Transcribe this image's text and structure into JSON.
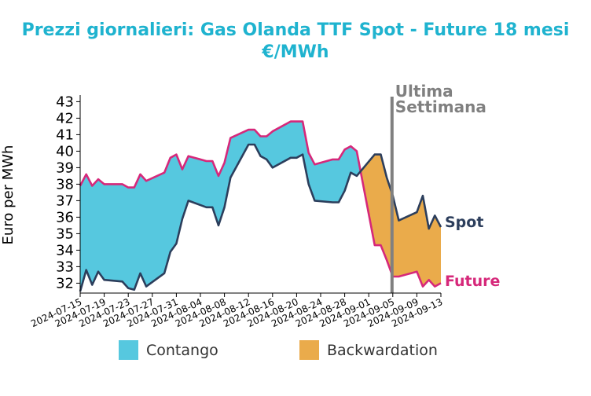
{
  "chart_data": {
    "type": "area",
    "title_line1": "Prezzi giornalieri: Gas Olanda TTF Spot - Future 18 mesi",
    "title_line2": "€/MWh",
    "ylabel": "Euro per MWh",
    "xlabel": "",
    "ylim": [
      31.4,
      43.4
    ],
    "yticks": [
      32,
      33,
      34,
      35,
      36,
      37,
      38,
      39,
      40,
      41,
      42,
      43
    ],
    "xticks": [
      "2024-07-15",
      "2024-07-19",
      "2024-07-23",
      "2024-07-27",
      "2024-07-31",
      "2024-08-04",
      "2024-08-08",
      "2024-08-12",
      "2024-08-16",
      "2024-08-20",
      "2024-08-24",
      "2024-08-28",
      "2024-09-01",
      "2024-09-05",
      "2024-09-09",
      "2024-09-13"
    ],
    "x_start": "2024-07-15",
    "x_end": "2024-09-13",
    "vline": {
      "date": "2024-09-05",
      "label_line1": "Ultima",
      "label_line2": "Settimana",
      "color": "#808080"
    },
    "series": [
      {
        "name": "Spot",
        "color": "#2c3e5c",
        "dates": [
          "2024-07-15",
          "2024-07-16",
          "2024-07-17",
          "2024-07-18",
          "2024-07-19",
          "2024-07-22",
          "2024-07-23",
          "2024-07-24",
          "2024-07-25",
          "2024-07-26",
          "2024-07-29",
          "2024-07-30",
          "2024-07-31",
          "2024-08-01",
          "2024-08-02",
          "2024-08-05",
          "2024-08-06",
          "2024-08-07",
          "2024-08-08",
          "2024-08-09",
          "2024-08-12",
          "2024-08-13",
          "2024-08-14",
          "2024-08-15",
          "2024-08-16",
          "2024-08-19",
          "2024-08-20",
          "2024-08-21",
          "2024-08-22",
          "2024-08-23",
          "2024-08-26",
          "2024-08-27",
          "2024-08-28",
          "2024-08-29",
          "2024-08-30",
          "2024-09-02",
          "2024-09-03",
          "2024-09-04",
          "2024-09-05",
          "2024-09-06",
          "2024-09-09",
          "2024-09-10",
          "2024-09-11",
          "2024-09-12",
          "2024-09-13"
        ],
        "values": [
          31.5,
          32.8,
          31.9,
          32.7,
          32.2,
          32.1,
          31.7,
          31.6,
          32.6,
          31.8,
          32.6,
          33.9,
          34.4,
          35.9,
          37.0,
          36.6,
          36.6,
          35.5,
          36.6,
          38.4,
          40.4,
          40.4,
          39.7,
          39.5,
          39.0,
          39.6,
          39.6,
          39.8,
          38.0,
          37.0,
          36.9,
          36.9,
          37.6,
          38.7,
          38.5,
          39.8,
          39.8,
          38.4,
          37.3,
          35.8,
          36.3,
          37.3,
          35.3,
          36.1,
          35.4
        ]
      },
      {
        "name": "Future",
        "color": "#d6287a",
        "dates": [
          "2024-07-15",
          "2024-07-16",
          "2024-07-17",
          "2024-07-18",
          "2024-07-19",
          "2024-07-22",
          "2024-07-23",
          "2024-07-24",
          "2024-07-25",
          "2024-07-26",
          "2024-07-29",
          "2024-07-30",
          "2024-07-31",
          "2024-08-01",
          "2024-08-02",
          "2024-08-05",
          "2024-08-06",
          "2024-08-07",
          "2024-08-08",
          "2024-08-09",
          "2024-08-12",
          "2024-08-13",
          "2024-08-14",
          "2024-08-15",
          "2024-08-16",
          "2024-08-19",
          "2024-08-20",
          "2024-08-21",
          "2024-08-22",
          "2024-08-23",
          "2024-08-26",
          "2024-08-27",
          "2024-08-28",
          "2024-08-29",
          "2024-08-30",
          "2024-09-02",
          "2024-09-03",
          "2024-09-04",
          "2024-09-05",
          "2024-09-06",
          "2024-09-09",
          "2024-09-10",
          "2024-09-11",
          "2024-09-12",
          "2024-09-13"
        ],
        "values": [
          37.9,
          38.6,
          37.9,
          38.3,
          38.0,
          38.0,
          37.8,
          37.8,
          38.6,
          38.2,
          38.7,
          39.6,
          39.8,
          38.9,
          39.7,
          39.4,
          39.4,
          38.5,
          39.3,
          40.8,
          41.3,
          41.3,
          40.9,
          40.9,
          41.2,
          41.8,
          41.8,
          41.8,
          39.9,
          39.2,
          39.5,
          39.5,
          40.1,
          40.3,
          40.0,
          34.3,
          34.3,
          33.4,
          32.4,
          32.4,
          32.7,
          31.8,
          32.2,
          31.8,
          32.0
        ]
      }
    ],
    "legend": {
      "placement": "bottom",
      "items": [
        {
          "label": "Contango",
          "color": "#56c8df"
        },
        {
          "label": "Backwardation",
          "color": "#eaab4b"
        }
      ]
    },
    "end_labels": {
      "spot": "Spot",
      "future": "Future"
    }
  }
}
